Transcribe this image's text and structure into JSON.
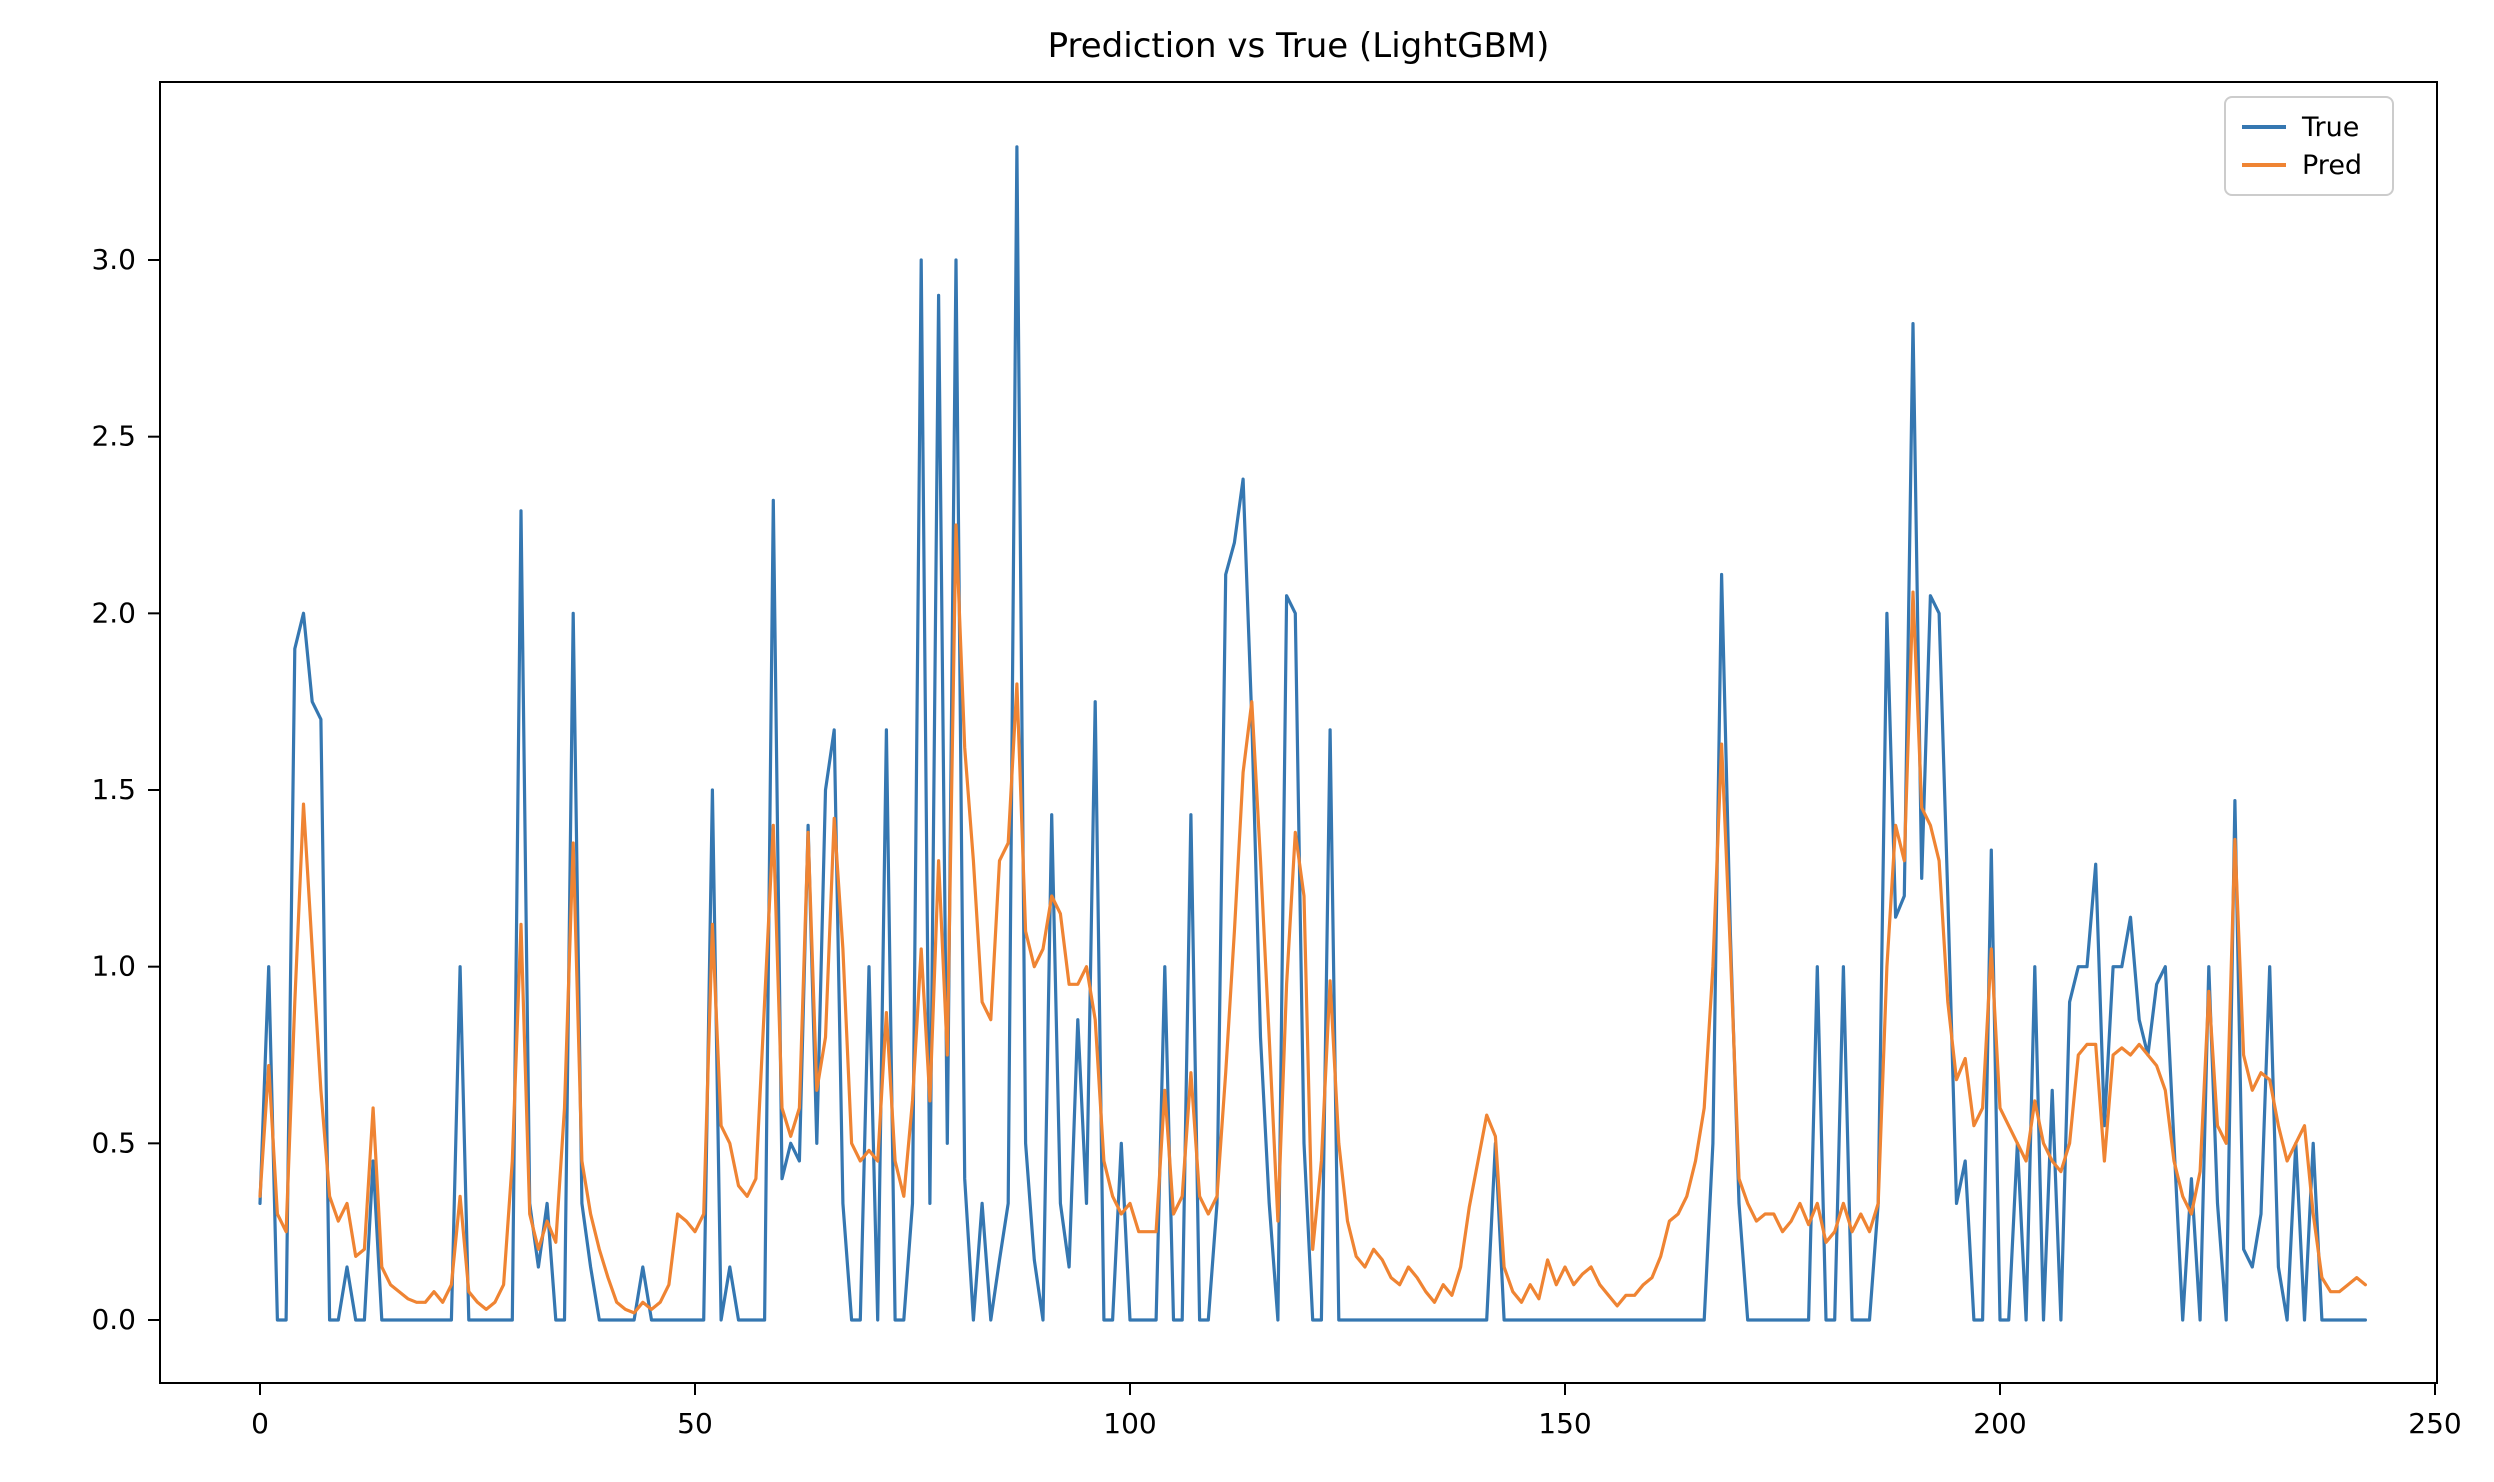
{
  "title": "Prediction vs True (LightGBM)",
  "legend": {
    "position": "upper right",
    "entries": [
      {
        "label": "True",
        "color": "#3577b1"
      },
      {
        "label": "Pred",
        "color": "#ef8433"
      }
    ]
  },
  "axes": {
    "xtick_labels": [
      "0",
      "50",
      "100",
      "150",
      "200",
      "250"
    ],
    "xtick_values": [
      0,
      50,
      100,
      150,
      200,
      250
    ],
    "ytick_labels": [
      "0.0",
      "0.5",
      "1.0",
      "1.5",
      "2.0",
      "2.5",
      "3.0"
    ],
    "ytick_values": [
      0,
      0.5,
      1.0,
      1.5,
      2.0,
      2.5,
      3.0
    ]
  },
  "chart_data": {
    "type": "line",
    "title": "Prediction vs True (LightGBM)",
    "xlabel": "",
    "ylabel": "",
    "xlim": [
      -12,
      254
    ],
    "ylim": [
      -0.18,
      3.5
    ],
    "grid": false,
    "legend_position": "upper right",
    "x_start": 0,
    "x_step": 1,
    "n_points": 243,
    "series": [
      {
        "name": "True",
        "color": "#3577b1",
        "values": [
          0.33,
          1,
          0,
          0,
          1.9,
          2,
          1.75,
          1.7,
          0,
          0,
          0.15,
          0,
          0,
          0.45,
          0,
          0,
          0,
          0,
          0,
          0,
          0,
          0,
          0,
          1,
          0,
          0,
          0,
          0,
          0,
          0,
          2.29,
          0.33,
          0.15,
          0.33,
          0,
          0,
          2,
          0.33,
          0.15,
          0,
          0,
          0,
          0,
          0,
          0.15,
          0,
          0,
          0,
          0,
          0,
          0,
          0,
          1.5,
          0,
          0.15,
          0,
          0,
          0,
          0,
          2.32,
          0.4,
          0.5,
          0.45,
          1.4,
          0.5,
          1.5,
          1.67,
          0.33,
          0,
          0,
          1,
          0,
          1.67,
          0,
          0,
          0.33,
          3,
          0.33,
          2.9,
          0.5,
          3,
          0.4,
          0,
          0.33,
          0,
          0.17,
          0.33,
          3.32,
          0.5,
          0.17,
          0,
          1.43,
          0.33,
          0.15,
          0.85,
          0.33,
          1.75,
          0,
          0,
          0.5,
          0,
          0,
          0,
          0,
          1,
          0,
          0,
          1.43,
          0,
          0,
          0.33,
          2.11,
          2.2,
          2.38,
          1.7,
          0.8,
          0.33,
          0,
          2.05,
          2,
          0.5,
          0,
          0,
          1.67,
          0,
          0,
          0,
          0,
          0,
          0,
          0,
          0,
          0,
          0,
          0,
          0,
          0,
          0,
          0,
          0,
          0,
          0,
          0.5,
          0,
          0,
          0,
          0,
          0,
          0,
          0,
          0,
          0,
          0,
          0,
          0,
          0,
          0,
          0,
          0,
          0,
          0,
          0,
          0,
          0,
          0,
          0,
          0,
          0.5,
          2.11,
          1.1,
          0.33,
          0,
          0,
          0,
          0,
          0,
          0,
          0,
          0,
          1,
          0,
          0,
          1,
          0,
          0,
          0,
          0.33,
          2,
          1.14,
          1.2,
          2.82,
          1.25,
          2.05,
          2,
          1.2,
          0.33,
          0.45,
          0,
          0,
          1.33,
          0,
          0,
          0.5,
          0,
          1,
          0,
          0.65,
          0,
          0.9,
          1,
          1,
          1.29,
          0.55,
          1,
          1,
          1.14,
          0.85,
          0.75,
          0.95,
          1,
          0.5,
          0,
          0.4,
          0,
          1,
          0.33,
          0,
          1.47,
          0.2,
          0.15,
          0.3,
          1,
          0.15,
          0,
          0.5,
          0,
          0.5,
          0,
          0,
          0,
          0,
          0,
          0
        ]
      },
      {
        "name": "Pred",
        "color": "#ef8433",
        "values": [
          0.35,
          0.72,
          0.3,
          0.25,
          0.9,
          1.46,
          1.05,
          0.65,
          0.35,
          0.28,
          0.33,
          0.18,
          0.2,
          0.6,
          0.15,
          0.1,
          0.08,
          0.06,
          0.05,
          0.05,
          0.08,
          0.05,
          0.1,
          0.35,
          0.08,
          0.05,
          0.03,
          0.05,
          0.1,
          0.45,
          1.12,
          0.3,
          0.2,
          0.28,
          0.22,
          0.6,
          1.35,
          0.45,
          0.3,
          0.2,
          0.12,
          0.05,
          0.03,
          0.02,
          0.05,
          0.03,
          0.05,
          0.1,
          0.3,
          0.28,
          0.25,
          0.3,
          1.12,
          0.55,
          0.5,
          0.38,
          0.35,
          0.4,
          0.9,
          1.4,
          0.6,
          0.52,
          0.6,
          1.38,
          0.65,
          0.8,
          1.42,
          1.05,
          0.5,
          0.45,
          0.48,
          0.45,
          0.87,
          0.45,
          0.35,
          0.62,
          1.05,
          0.62,
          1.3,
          0.75,
          2.25,
          1.62,
          1.3,
          0.9,
          0.85,
          1.3,
          1.35,
          1.8,
          1.1,
          1,
          1.05,
          1.2,
          1.15,
          0.95,
          0.95,
          1,
          0.85,
          0.45,
          0.35,
          0.3,
          0.33,
          0.25,
          0.25,
          0.25,
          0.65,
          0.3,
          0.35,
          0.7,
          0.35,
          0.3,
          0.35,
          0.7,
          1.1,
          1.55,
          1.75,
          1.3,
          0.8,
          0.28,
          0.95,
          1.38,
          1.2,
          0.2,
          0.45,
          0.96,
          0.5,
          0.28,
          0.18,
          0.15,
          0.2,
          0.17,
          0.12,
          0.1,
          0.15,
          0.12,
          0.08,
          0.05,
          0.1,
          0.07,
          0.15,
          0.32,
          0.45,
          0.58,
          0.52,
          0.15,
          0.08,
          0.05,
          0.1,
          0.06,
          0.17,
          0.1,
          0.15,
          0.1,
          0.13,
          0.15,
          0.1,
          0.07,
          0.04,
          0.07,
          0.07,
          0.1,
          0.12,
          0.18,
          0.28,
          0.3,
          0.35,
          0.45,
          0.6,
          1,
          1.63,
          1.05,
          0.4,
          0.33,
          0.28,
          0.3,
          0.3,
          0.25,
          0.28,
          0.33,
          0.27,
          0.33,
          0.22,
          0.25,
          0.33,
          0.25,
          0.3,
          0.25,
          0.33,
          1,
          1.4,
          1.3,
          2.06,
          1.45,
          1.4,
          1.3,
          0.9,
          0.68,
          0.74,
          0.55,
          0.6,
          1.05,
          0.6,
          0.55,
          0.5,
          0.45,
          0.62,
          0.5,
          0.45,
          0.42,
          0.5,
          0.75,
          0.78,
          0.78,
          0.45,
          0.75,
          0.77,
          0.75,
          0.78,
          0.75,
          0.72,
          0.65,
          0.45,
          0.35,
          0.3,
          0.42,
          0.93,
          0.55,
          0.5,
          1.36,
          0.75,
          0.65,
          0.7,
          0.68,
          0.55,
          0.45,
          0.5,
          0.55,
          0.3,
          0.12,
          0.08,
          0.08,
          0.1,
          0.12,
          0.1
        ]
      }
    ]
  }
}
